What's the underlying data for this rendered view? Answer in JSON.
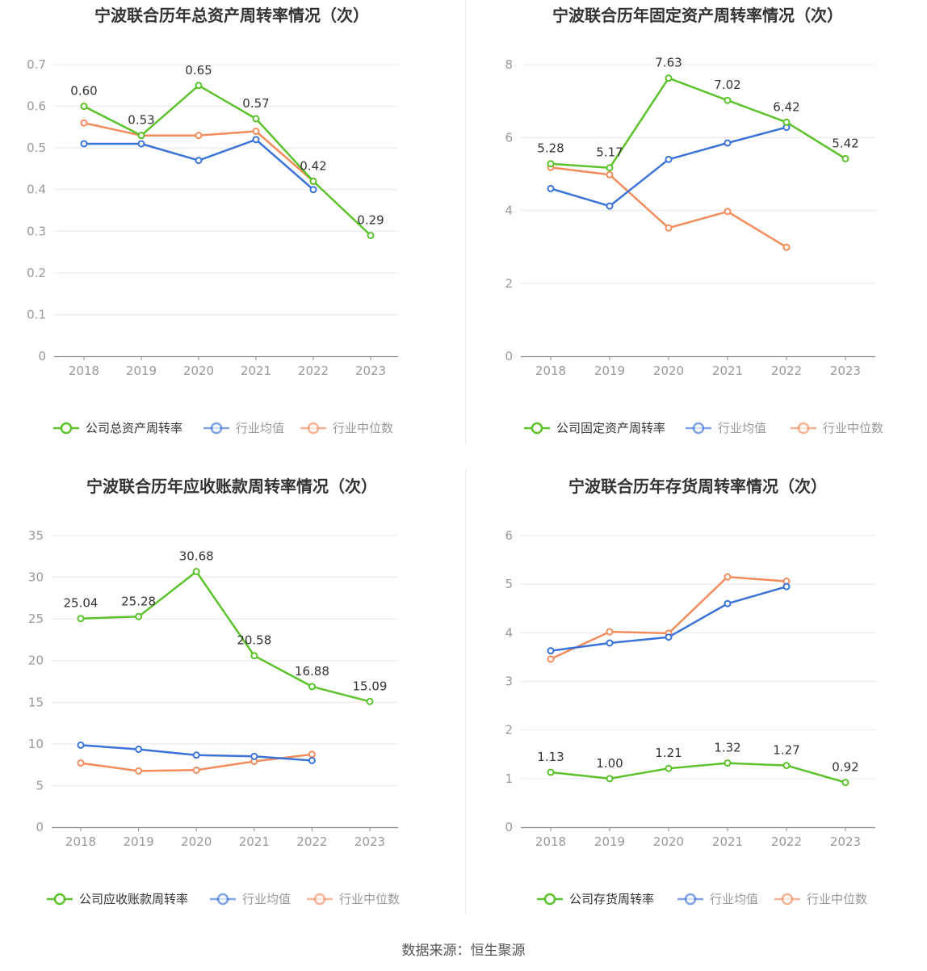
{
  "colors": {
    "company": "#5cc22c",
    "avg": "#3b73d9",
    "median": "#f28c5c"
  },
  "source": "数据来源：恒生聚源",
  "chart_data": [
    {
      "type": "line",
      "title": "宁波联合历年总资产周转率情况（次）",
      "categories": [
        "2018",
        "2019",
        "2020",
        "2021",
        "2022",
        "2023"
      ],
      "ylim": [
        0,
        0.7
      ],
      "yticks": [
        "0",
        "0.1",
        "0.2",
        "0.3",
        "0.4",
        "0.5",
        "0.6",
        "0.7"
      ],
      "series": [
        {
          "name": "公司总资产周转率",
          "role": "company",
          "values": [
            0.6,
            0.53,
            0.65,
            0.57,
            0.42,
            0.29
          ],
          "labels": [
            "0.60",
            "0.53",
            "0.65",
            "0.57",
            "0.42",
            "0.29"
          ]
        },
        {
          "name": "行业均值",
          "role": "avg",
          "values": [
            0.51,
            0.51,
            0.47,
            0.52,
            0.4,
            null
          ]
        },
        {
          "name": "行业中位数",
          "role": "median",
          "values": [
            0.56,
            0.53,
            0.53,
            0.54,
            0.42,
            null
          ]
        }
      ]
    },
    {
      "type": "line",
      "title": "宁波联合历年固定资产周转率情况（次）",
      "categories": [
        "2018",
        "2019",
        "2020",
        "2021",
        "2022",
        "2023"
      ],
      "ylim": [
        0,
        8
      ],
      "yticks": [
        "0",
        "2",
        "4",
        "6",
        "8"
      ],
      "series": [
        {
          "name": "公司固定资产周转率",
          "role": "company",
          "values": [
            5.28,
            5.17,
            7.63,
            7.02,
            6.42,
            5.42
          ],
          "labels": [
            "5.28",
            "5.17",
            "7.63",
            "7.02",
            "6.42",
            "5.42"
          ]
        },
        {
          "name": "行业均值",
          "role": "avg",
          "values": [
            4.6,
            4.12,
            5.4,
            5.85,
            6.28,
            null
          ]
        },
        {
          "name": "行业中位数",
          "role": "median",
          "values": [
            5.18,
            4.98,
            3.52,
            3.97,
            2.99,
            null
          ]
        }
      ]
    },
    {
      "type": "line",
      "title": "宁波联合历年应收账款周转率情况（次）",
      "categories": [
        "2018",
        "2019",
        "2020",
        "2021",
        "2022",
        "2023"
      ],
      "ylim": [
        0,
        35
      ],
      "yticks": [
        "0",
        "5",
        "10",
        "15",
        "20",
        "25",
        "30",
        "35"
      ],
      "series": [
        {
          "name": "公司应收账款周转率",
          "role": "company",
          "values": [
            25.04,
            25.28,
            30.68,
            20.58,
            16.88,
            15.09
          ],
          "labels": [
            "25.04",
            "25.28",
            "30.68",
            "20.58",
            "16.88",
            "15.09"
          ]
        },
        {
          "name": "行业均值",
          "role": "avg",
          "values": [
            9.85,
            9.35,
            8.65,
            8.5,
            8.0,
            null
          ]
        },
        {
          "name": "行业中位数",
          "role": "median",
          "values": [
            7.7,
            6.75,
            6.85,
            7.9,
            8.75,
            null
          ]
        }
      ]
    },
    {
      "type": "line",
      "title": "宁波联合历年存货周转率情况（次）",
      "categories": [
        "2018",
        "2019",
        "2020",
        "2021",
        "2022",
        "2023"
      ],
      "ylim": [
        0,
        6
      ],
      "yticks": [
        "0",
        "1",
        "2",
        "3",
        "4",
        "5",
        "6"
      ],
      "series": [
        {
          "name": "公司存货周转率",
          "role": "company",
          "values": [
            1.13,
            1.0,
            1.21,
            1.32,
            1.27,
            0.92
          ],
          "labels": [
            "1.13",
            "1.00",
            "1.21",
            "1.32",
            "1.27",
            "0.92"
          ]
        },
        {
          "name": "行业均值",
          "role": "avg",
          "values": [
            3.63,
            3.79,
            3.91,
            4.6,
            4.95,
            null
          ]
        },
        {
          "name": "行业中位数",
          "role": "median",
          "values": [
            3.46,
            4.02,
            3.99,
            5.15,
            5.06,
            null
          ]
        }
      ]
    }
  ]
}
